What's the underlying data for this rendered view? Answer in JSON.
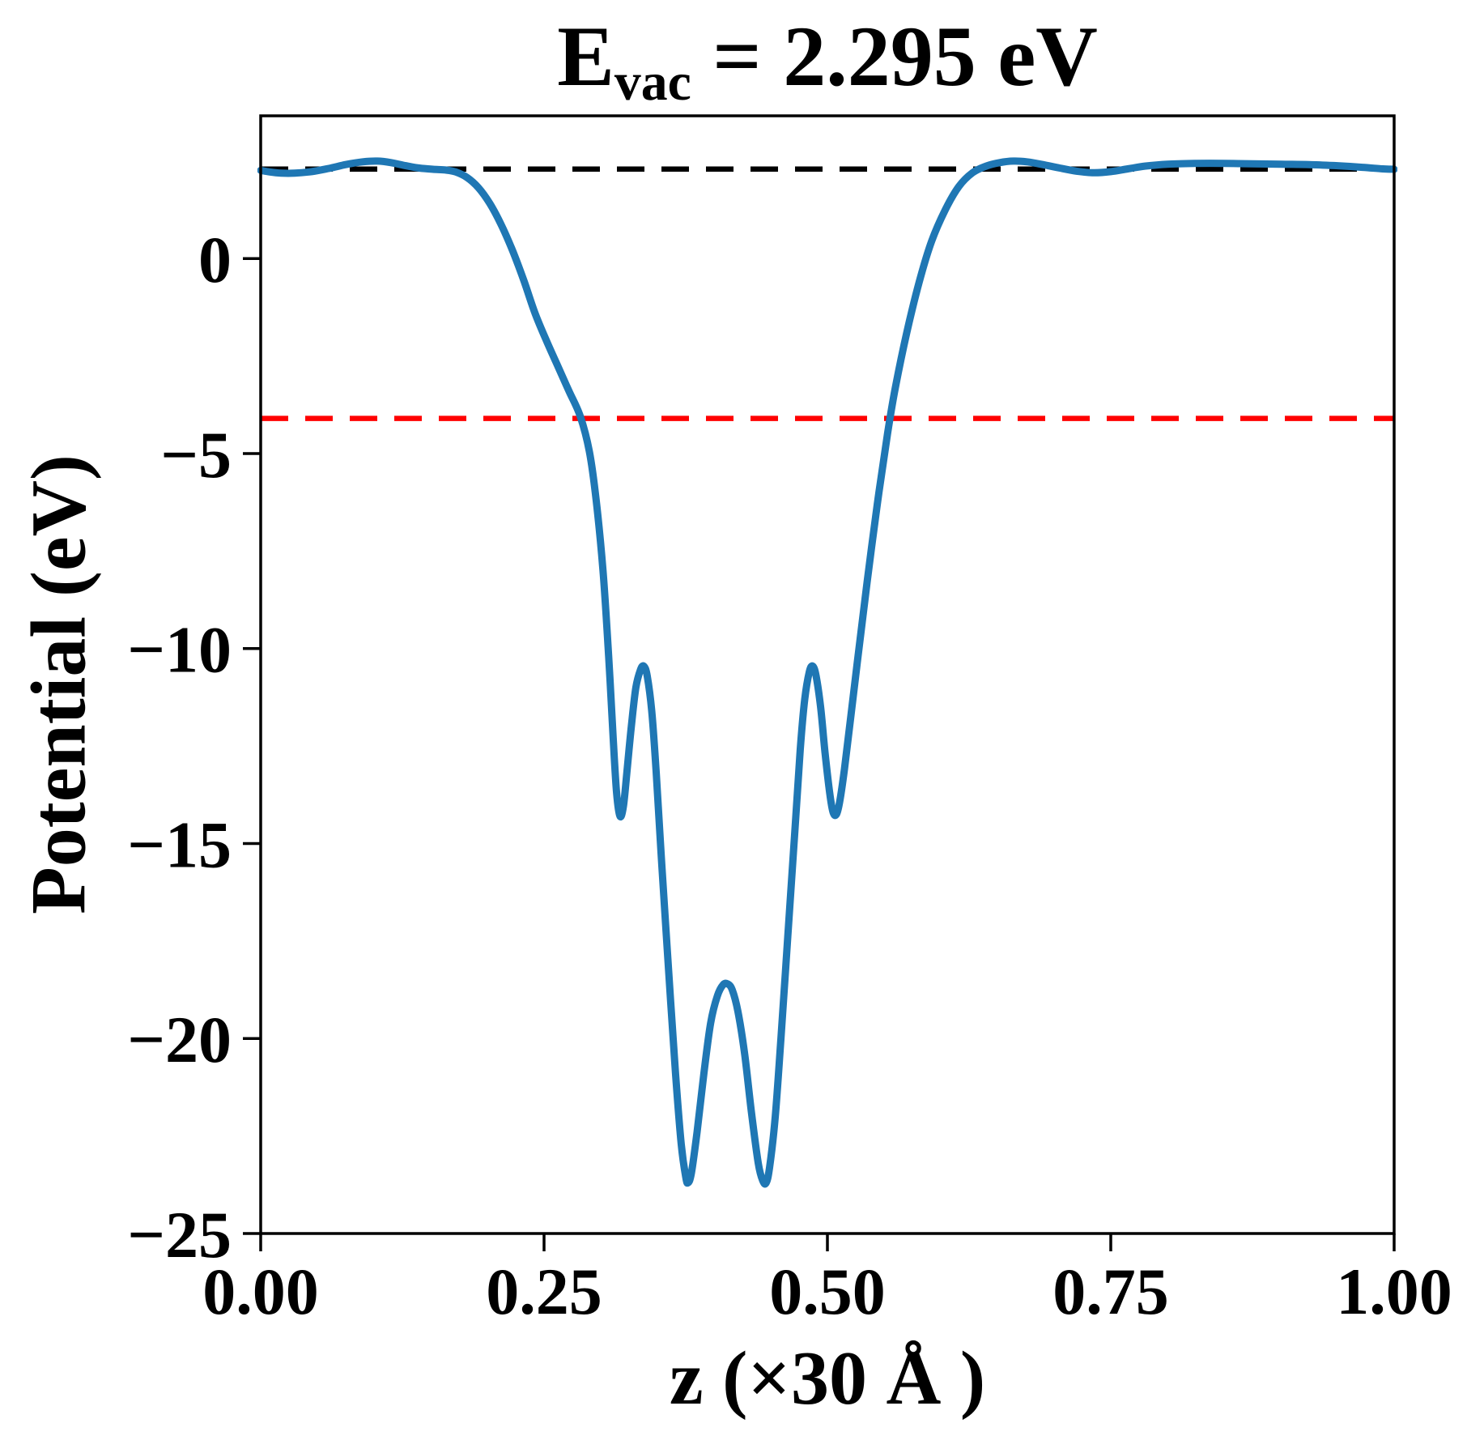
{
  "title": {
    "base": "E",
    "subscript": "vac",
    "suffix": " = 2.295 eV"
  },
  "axes": {
    "ylabel": "Potential (eV)",
    "xlabel": "z (×30 Å )"
  },
  "chart_data": {
    "type": "line",
    "title": "E_vac = 2.295 eV",
    "xlabel": "z (×30 Å )",
    "ylabel": "Potential (eV)",
    "xlim": [
      0.0,
      1.0
    ],
    "ylim": [
      -25.0,
      3.66
    ],
    "grid": false,
    "legend": "none",
    "x_ticks": [
      {
        "label": "0.00",
        "value": 0.0
      },
      {
        "label": "0.25",
        "value": 0.25
      },
      {
        "label": "0.50",
        "value": 0.5
      },
      {
        "label": "0.75",
        "value": 0.75
      },
      {
        "label": "1.00",
        "value": 1.0
      }
    ],
    "y_ticks": [
      {
        "label": "0",
        "value": 0
      },
      {
        "label": "−5",
        "value": -5
      },
      {
        "label": "−10",
        "value": -10
      },
      {
        "label": "−15",
        "value": -15
      },
      {
        "label": "−20",
        "value": -20
      },
      {
        "label": "−25",
        "value": -25
      }
    ],
    "reference_lines": [
      {
        "name": "vacuum-level-line",
        "value": 2.295,
        "color": "#000000",
        "style": "dashed"
      },
      {
        "name": "fermi-level-line",
        "value": -4.1,
        "color": "#ff0000",
        "style": "dashed"
      }
    ],
    "series": [
      {
        "name": "planar-averaged-potential",
        "color": "#1f77b4",
        "points": [
          [
            0.0,
            2.26
          ],
          [
            0.008,
            2.22
          ],
          [
            0.018,
            2.19
          ],
          [
            0.03,
            2.19
          ],
          [
            0.045,
            2.23
          ],
          [
            0.06,
            2.31
          ],
          [
            0.075,
            2.41
          ],
          [
            0.09,
            2.48
          ],
          [
            0.103,
            2.5
          ],
          [
            0.115,
            2.46
          ],
          [
            0.128,
            2.38
          ],
          [
            0.14,
            2.32
          ],
          [
            0.152,
            2.29
          ],
          [
            0.163,
            2.27
          ],
          [
            0.172,
            2.22
          ],
          [
            0.182,
            2.08
          ],
          [
            0.192,
            1.82
          ],
          [
            0.202,
            1.42
          ],
          [
            0.212,
            0.88
          ],
          [
            0.222,
            0.22
          ],
          [
            0.232,
            -0.55
          ],
          [
            0.242,
            -1.4
          ],
          [
            0.252,
            -2.1
          ],
          [
            0.262,
            -2.75
          ],
          [
            0.272,
            -3.4
          ],
          [
            0.282,
            -4.05
          ],
          [
            0.29,
            -4.95
          ],
          [
            0.296,
            -6.2
          ],
          [
            0.302,
            -8.0
          ],
          [
            0.307,
            -10.2
          ],
          [
            0.311,
            -12.3
          ],
          [
            0.314,
            -13.7
          ],
          [
            0.317,
            -14.3
          ],
          [
            0.32,
            -14.05
          ],
          [
            0.323,
            -13.2
          ],
          [
            0.327,
            -12.0
          ],
          [
            0.331,
            -11.0
          ],
          [
            0.335,
            -10.55
          ],
          [
            0.338,
            -10.45
          ],
          [
            0.341,
            -10.7
          ],
          [
            0.345,
            -11.6
          ],
          [
            0.349,
            -13.2
          ],
          [
            0.354,
            -15.6
          ],
          [
            0.36,
            -18.3
          ],
          [
            0.366,
            -20.9
          ],
          [
            0.371,
            -22.7
          ],
          [
            0.375,
            -23.55
          ],
          [
            0.377,
            -23.7
          ],
          [
            0.38,
            -23.45
          ],
          [
            0.385,
            -22.4
          ],
          [
            0.391,
            -20.9
          ],
          [
            0.397,
            -19.6
          ],
          [
            0.403,
            -18.9
          ],
          [
            0.408,
            -18.62
          ],
          [
            0.412,
            -18.6
          ],
          [
            0.416,
            -18.75
          ],
          [
            0.421,
            -19.3
          ],
          [
            0.427,
            -20.4
          ],
          [
            0.433,
            -21.9
          ],
          [
            0.439,
            -23.2
          ],
          [
            0.443,
            -23.65
          ],
          [
            0.446,
            -23.7
          ],
          [
            0.449,
            -23.3
          ],
          [
            0.454,
            -22.0
          ],
          [
            0.459,
            -20.0
          ],
          [
            0.465,
            -17.4
          ],
          [
            0.471,
            -14.8
          ],
          [
            0.476,
            -12.6
          ],
          [
            0.48,
            -11.3
          ],
          [
            0.484,
            -10.6
          ],
          [
            0.487,
            -10.45
          ],
          [
            0.49,
            -10.7
          ],
          [
            0.494,
            -11.5
          ],
          [
            0.498,
            -12.7
          ],
          [
            0.502,
            -13.7
          ],
          [
            0.505,
            -14.2
          ],
          [
            0.508,
            -14.25
          ],
          [
            0.511,
            -13.9
          ],
          [
            0.515,
            -13.1
          ],
          [
            0.52,
            -11.9
          ],
          [
            0.527,
            -10.2
          ],
          [
            0.535,
            -8.3
          ],
          [
            0.544,
            -6.3
          ],
          [
            0.553,
            -4.5
          ],
          [
            0.56,
            -3.3
          ],
          [
            0.57,
            -1.9
          ],
          [
            0.581,
            -0.6
          ],
          [
            0.592,
            0.45
          ],
          [
            0.604,
            1.25
          ],
          [
            0.616,
            1.85
          ],
          [
            0.628,
            2.2
          ],
          [
            0.64,
            2.37
          ],
          [
            0.652,
            2.46
          ],
          [
            0.664,
            2.5
          ],
          [
            0.676,
            2.48
          ],
          [
            0.69,
            2.41
          ],
          [
            0.705,
            2.32
          ],
          [
            0.72,
            2.24
          ],
          [
            0.735,
            2.2
          ],
          [
            0.75,
            2.23
          ],
          [
            0.765,
            2.3
          ],
          [
            0.78,
            2.37
          ],
          [
            0.8,
            2.42
          ],
          [
            0.825,
            2.44
          ],
          [
            0.85,
            2.44
          ],
          [
            0.875,
            2.43
          ],
          [
            0.9,
            2.42
          ],
          [
            0.925,
            2.41
          ],
          [
            0.95,
            2.38
          ],
          [
            0.972,
            2.34
          ],
          [
            0.99,
            2.3
          ],
          [
            1.0,
            2.29
          ]
        ]
      }
    ]
  },
  "colors": {
    "curve": "#1f77b4",
    "vacuum_line": "#000000",
    "fermi_line": "#ff0000",
    "axis": "#000000",
    "background": "#ffffff"
  }
}
